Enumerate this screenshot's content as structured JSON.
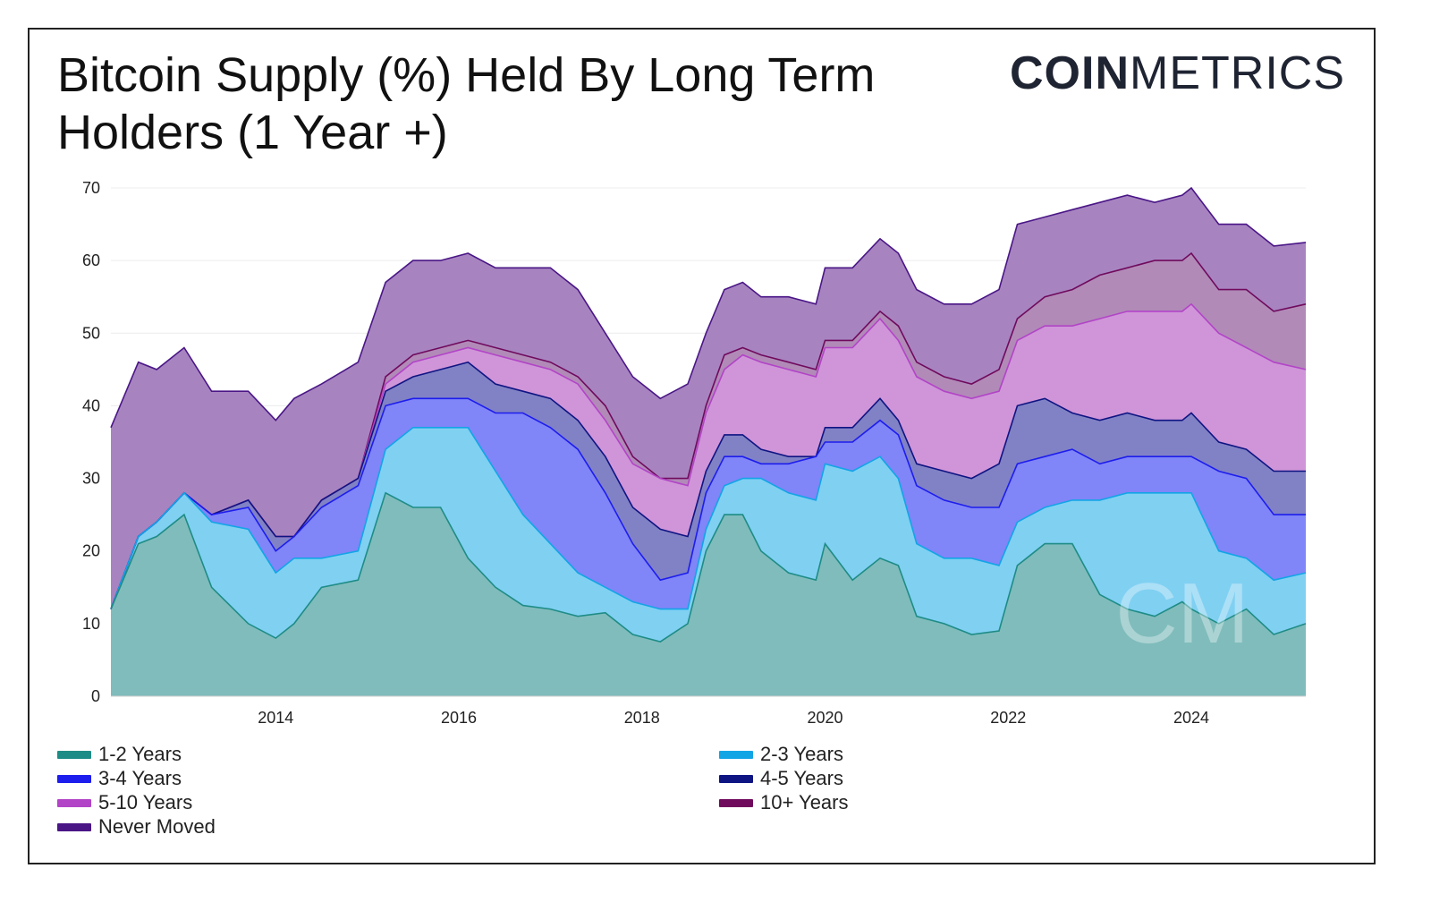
{
  "title_line1": "Bitcoin Supply (%) Held By Long Term",
  "title_line2": "Holders (1 Year +)",
  "logo_bold": "COIN",
  "logo_thin": "METRICS",
  "watermark": "CM",
  "chart_data": {
    "type": "area",
    "stacked": true,
    "xlabel": "",
    "ylabel": "",
    "ylim": [
      0,
      70
    ],
    "yticks": [
      0,
      10,
      20,
      30,
      40,
      50,
      60,
      70
    ],
    "xlim": [
      2012.2,
      2025.25
    ],
    "xticks": [
      2014,
      2016,
      2018,
      2020,
      2022,
      2024
    ],
    "xtick_labels": [
      "2014",
      "2016",
      "2018",
      "2020",
      "2022",
      "2024"
    ],
    "x": [
      2012.2,
      2012.5,
      2012.7,
      2013.0,
      2013.3,
      2013.7,
      2014.0,
      2014.2,
      2014.5,
      2014.9,
      2015.2,
      2015.5,
      2015.8,
      2016.1,
      2016.4,
      2016.7,
      2017.0,
      2017.3,
      2017.6,
      2017.9,
      2018.2,
      2018.5,
      2018.7,
      2018.9,
      2019.1,
      2019.3,
      2019.6,
      2019.9,
      2020.0,
      2020.3,
      2020.6,
      2020.8,
      2021.0,
      2021.3,
      2021.6,
      2021.9,
      2022.1,
      2022.4,
      2022.7,
      2023.0,
      2023.3,
      2023.6,
      2023.9,
      2024.0,
      2024.3,
      2024.6,
      2024.9,
      2025.25
    ],
    "series": [
      {
        "name": "1-2 Years",
        "color": "#1e8c86",
        "fill": "#80bcbc",
        "values": [
          12,
          21,
          22,
          25,
          15,
          10,
          8,
          10,
          15,
          16,
          28,
          26,
          26,
          19,
          15,
          12.5,
          12,
          11,
          11.5,
          8.5,
          7.5,
          10,
          20,
          25,
          25,
          20,
          17,
          16,
          21,
          16,
          19,
          18,
          11,
          10,
          8.5,
          9,
          18,
          21,
          21,
          14,
          12,
          11,
          13,
          12,
          10,
          12,
          8.5,
          10
        ]
      },
      {
        "name": "2-3 Years",
        "color": "#12a5e6",
        "fill": "#80d0f2",
        "values": [
          12,
          22,
          24,
          28,
          24,
          23,
          17,
          19,
          19,
          20,
          34,
          37,
          37,
          37,
          31,
          25,
          21,
          17,
          15,
          13,
          12,
          12,
          23,
          29,
          30,
          30,
          28,
          27,
          32,
          31,
          33,
          30,
          21,
          19,
          19,
          18,
          24,
          26,
          27,
          27,
          28,
          28,
          28,
          28,
          20,
          19,
          16,
          17
        ]
      },
      {
        "name": "3-4 Years",
        "color": "#1d1dee",
        "fill": "#8085f7",
        "values": [
          12,
          22,
          24,
          28,
          25,
          26,
          20,
          22,
          26,
          29,
          40,
          41,
          41,
          41,
          39,
          39,
          37,
          34,
          28,
          21,
          16,
          17,
          28,
          33,
          33,
          32,
          32,
          33,
          35,
          35,
          38,
          36,
          29,
          27,
          26,
          26,
          32,
          33,
          34,
          32,
          33,
          33,
          33,
          33,
          31,
          30,
          25,
          25
        ]
      },
      {
        "name": "4-5 Years",
        "color": "#0f1483",
        "fill": "#8082c5",
        "values": [
          12,
          22,
          24,
          28,
          25,
          27,
          22,
          22,
          27,
          30,
          42,
          44,
          45,
          46,
          43,
          42,
          41,
          38,
          33,
          26,
          23,
          22,
          31,
          36,
          36,
          34,
          33,
          33,
          37,
          37,
          41,
          38,
          32,
          31,
          30,
          32,
          40,
          41,
          39,
          38,
          39,
          38,
          38,
          39,
          35,
          34,
          31,
          31
        ]
      },
      {
        "name": "5-10 Years",
        "color": "#b244c7",
        "fill": "#cf95d8",
        "values": [
          12,
          22,
          24,
          28,
          25,
          27,
          22,
          22,
          27,
          30,
          43,
          46,
          47,
          48,
          47,
          46,
          45,
          43,
          38,
          32,
          30,
          29,
          39,
          45,
          47,
          46,
          45,
          44,
          48,
          48,
          52,
          49,
          44,
          42,
          41,
          42,
          49,
          51,
          51,
          52,
          53,
          53,
          53,
          54,
          50,
          48,
          46,
          45
        ]
      },
      {
        "name": "10+ Years",
        "color": "#700a5d",
        "fill": "#b18ab8",
        "values": [
          12,
          22,
          24,
          28,
          25,
          27,
          22,
          22,
          27,
          30,
          44,
          47,
          48,
          49,
          48,
          47,
          46,
          44,
          40,
          33,
          30,
          30,
          40,
          47,
          48,
          47,
          46,
          45,
          49,
          49,
          53,
          51,
          46,
          44,
          43,
          45,
          52,
          55,
          56,
          58,
          59,
          60,
          60,
          61,
          56,
          56,
          53,
          54
        ]
      },
      {
        "name": "Never Moved",
        "color": "#4a1686",
        "fill": "#a784c0",
        "values": [
          37,
          46,
          45,
          48,
          42,
          42,
          38,
          41,
          43,
          46,
          57,
          60,
          60,
          61,
          59,
          59,
          59,
          56,
          50,
          44,
          41,
          43,
          50,
          56,
          57,
          55,
          55,
          54,
          59,
          59,
          63,
          61,
          56,
          54,
          54,
          56,
          65,
          66,
          67,
          68,
          69,
          68,
          69,
          70,
          65,
          65,
          62,
          62.5
        ]
      }
    ],
    "legend": [
      {
        "label": "1-2 Years",
        "color": "#1e8c86"
      },
      {
        "label": "2-3 Years",
        "color": "#12a5e6"
      },
      {
        "label": "3-4 Years",
        "color": "#1d1dee"
      },
      {
        "label": "4-5 Years",
        "color": "#0f1483"
      },
      {
        "label": "5-10 Years",
        "color": "#b244c7"
      },
      {
        "label": "10+ Years",
        "color": "#700a5d"
      },
      {
        "label": "Never Moved",
        "color": "#4a1686"
      }
    ],
    "legend_position": "bottom"
  }
}
